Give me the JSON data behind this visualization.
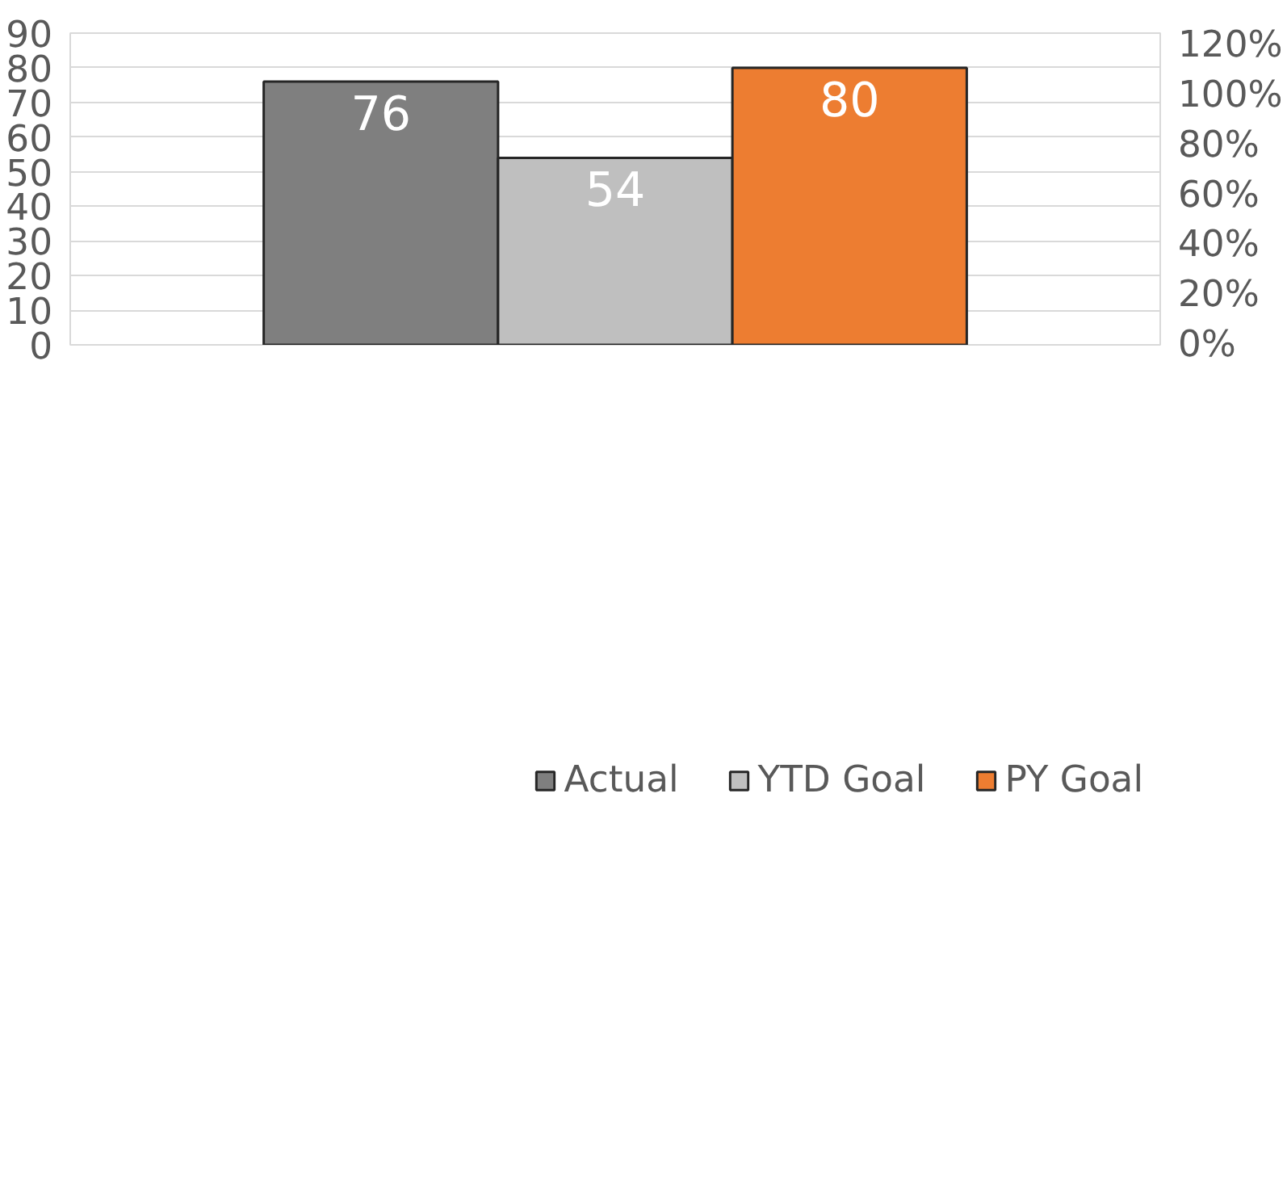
{
  "chart_data": {
    "type": "bar",
    "categories": [
      null
    ],
    "series": [
      {
        "name": "Actual",
        "color": "#7f7f7f",
        "values": [
          76
        ]
      },
      {
        "name": "YTD Goal",
        "color": "#bfbfbf",
        "values": [
          54
        ]
      },
      {
        "name": "PY Goal",
        "color": "#ed7d31",
        "values": [
          80
        ]
      }
    ],
    "ylim": [
      0,
      90
    ],
    "yticks": [
      0,
      10,
      20,
      30,
      40,
      50,
      60,
      70,
      80,
      90
    ],
    "y2lim": [
      0,
      125
    ],
    "y2ticks": [
      {
        "value": 0,
        "label": "0%"
      },
      {
        "value": 20,
        "label": "20%"
      },
      {
        "value": 40,
        "label": "40%"
      },
      {
        "value": 60,
        "label": "60%"
      },
      {
        "value": 80,
        "label": "80%"
      },
      {
        "value": 100,
        "label": "100%"
      },
      {
        "value": 120,
        "label": "120%"
      }
    ],
    "data_labels": true,
    "grid": "y",
    "legend": "bottom"
  }
}
